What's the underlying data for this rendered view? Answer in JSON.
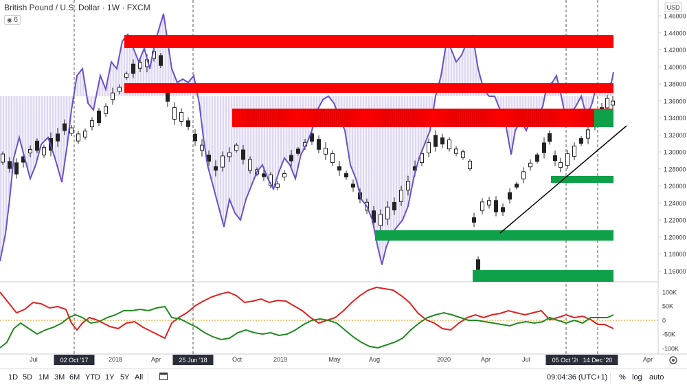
{
  "header": {
    "title": "British Pound / U.S. Dollar · 1W · FXCM",
    "layer_count": "6"
  },
  "price_axis": {
    "currency": "USD",
    "ticks": [
      "1.46000",
      "1.44000",
      "1.42000",
      "1.40000",
      "1.38000",
      "1.36000",
      "1.34000",
      "1.32000",
      "1.30000",
      "1.28000",
      "1.26000",
      "1.24000",
      "1.22000",
      "1.20000",
      "1.18000",
      "1.16000"
    ]
  },
  "indicator_axis": {
    "ticks": [
      "100K",
      "50K",
      "0",
      "-50K",
      "-100K"
    ]
  },
  "time_axis": {
    "labels": [
      "Jul",
      "Oct",
      "2018",
      "Apr",
      "Oct",
      "2019",
      "May",
      "Aug",
      "2020",
      "Apr",
      "Jul",
      "Apr"
    ],
    "highlighted": [
      "02 Oct '17",
      "25 Jun '18",
      "05 Oct '20",
      "14 Dec '20"
    ]
  },
  "bottom_bar": {
    "timeframes": [
      "1D",
      "5D",
      "1M",
      "3M",
      "6M",
      "YTD",
      "1Y",
      "5Y",
      "All"
    ],
    "clock": "09:04:36 (UTC+1)",
    "percent": "%",
    "log": "log",
    "auto": "auto"
  },
  "colors": {
    "resistance": "#ff0000",
    "support": "#0fa14a",
    "cot_line": "#6a4fc9",
    "long_line": "#1f8a1f",
    "short_line": "#e02020",
    "axis_badge": "#2a2e39"
  },
  "icons": [
    "calendar-range-icon",
    "settings-gear-icon",
    "eye-icon"
  ]
}
